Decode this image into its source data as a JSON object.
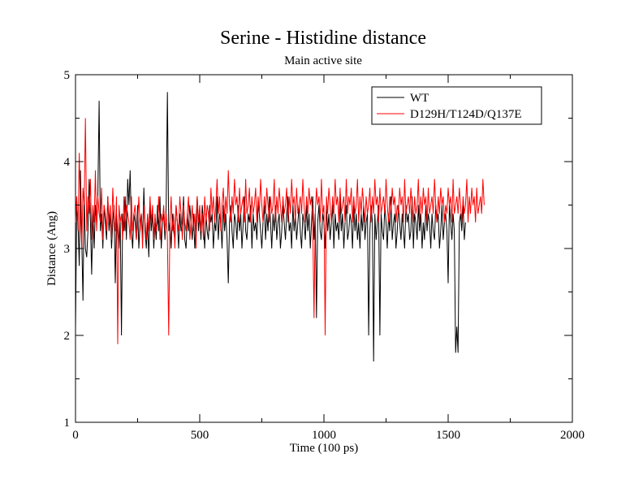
{
  "chart_data": {
    "type": "line",
    "title": "Serine - Histidine distance",
    "subtitle": "Main active site",
    "xlabel": "Time (100 ps)",
    "ylabel": "Distance (Ang)",
    "xlim": [
      0,
      2000
    ],
    "ylim": [
      1,
      5
    ],
    "x_ticks": [
      0,
      500,
      1000,
      1500,
      2000
    ],
    "y_ticks": [
      1,
      2,
      3,
      4,
      5
    ],
    "x_minor_step": 250,
    "y_minor_step": 0.5,
    "grid": false,
    "legend_position": "top-right",
    "series": [
      {
        "name": "WT",
        "color": "#000000",
        "x_step": 5,
        "values": [
          2.05,
          3.5,
          3.3,
          2.8,
          3.9,
          3.1,
          2.4,
          3.6,
          3.0,
          2.9,
          3.2,
          3.8,
          3.3,
          2.7,
          3.4,
          3.0,
          3.5,
          3.3,
          3.6,
          4.7,
          3.2,
          3.4,
          3.0,
          3.5,
          3.3,
          3.1,
          3.6,
          3.2,
          3.4,
          3.0,
          3.3,
          3.5,
          2.6,
          3.4,
          3.2,
          3.0,
          3.3,
          2.0,
          3.4,
          3.2,
          3.6,
          3.1,
          3.8,
          3.5,
          3.9,
          3.2,
          3.0,
          3.4,
          3.3,
          3.1,
          3.5,
          3.0,
          3.3,
          3.4,
          3.1,
          3.7,
          3.2,
          3.0,
          3.3,
          2.9,
          3.5,
          3.2,
          3.4,
          3.0,
          3.3,
          3.1,
          3.5,
          3.2,
          3.6,
          3.0,
          3.3,
          3.4,
          3.1,
          3.5,
          4.8,
          3.2,
          3.3,
          3.0,
          3.4,
          3.2,
          3.1,
          3.5,
          3.3,
          3.0,
          3.4,
          3.2,
          3.3,
          3.6,
          3.1,
          3.0,
          3.4,
          3.2,
          3.5,
          3.3,
          3.1,
          3.4,
          3.0,
          3.3,
          3.6,
          3.2,
          3.4,
          3.1,
          3.5,
          3.3,
          3.0,
          3.4,
          3.2,
          3.1,
          3.5,
          3.3,
          3.4,
          3.0,
          3.3,
          3.2,
          3.6,
          3.1,
          3.4,
          3.3,
          3.0,
          3.5,
          3.2,
          3.4,
          3.1,
          2.6,
          3.3,
          3.5,
          3.2,
          3.0,
          3.4,
          3.3,
          3.1,
          3.5,
          3.2,
          3.4,
          3.0,
          3.3,
          3.6,
          3.2,
          3.1,
          3.4,
          3.3,
          3.5,
          3.0,
          3.4,
          3.2,
          3.3,
          3.1,
          3.5,
          3.4,
          3.2,
          3.0,
          3.3,
          3.5,
          3.1,
          3.4,
          3.2,
          3.6,
          3.3,
          3.0,
          3.4,
          3.2,
          3.5,
          3.1,
          3.3,
          3.4,
          3.0,
          3.2,
          3.5,
          3.3,
          3.1,
          3.4,
          3.6,
          3.2,
          3.3,
          3.0,
          3.5,
          3.2,
          3.4,
          3.1,
          3.3,
          3.5,
          3.2,
          3.0,
          3.4,
          3.3,
          3.1,
          3.5,
          3.2,
          3.4,
          3.0,
          3.3,
          3.6,
          3.1,
          3.4,
          2.2,
          3.3,
          3.5,
          3.2,
          3.1,
          3.4,
          3.3,
          3.0,
          3.5,
          3.2,
          3.4,
          3.1,
          3.3,
          3.5,
          3.0,
          3.4,
          3.2,
          3.3,
          3.1,
          3.6,
          3.2,
          3.4,
          3.0,
          3.3,
          3.5,
          3.1,
          3.2,
          3.4,
          3.3,
          3.0,
          3.5,
          3.2,
          3.4,
          3.1,
          3.3,
          3.0,
          3.4,
          3.2,
          3.5,
          3.1,
          3.3,
          3.4,
          2.0,
          3.2,
          3.5,
          3.3,
          1.7,
          3.4,
          3.1,
          3.3,
          3.5,
          2.0,
          3.4,
          3.2,
          3.1,
          3.5,
          3.3,
          3.0,
          3.4,
          3.2,
          3.6,
          3.1,
          3.3,
          3.4,
          3.0,
          3.2,
          3.5,
          3.3,
          3.1,
          3.4,
          3.2,
          3.0,
          3.5,
          3.3,
          3.4,
          3.1,
          3.2,
          3.6,
          3.0,
          3.4,
          3.3,
          3.1,
          3.5,
          3.2,
          3.4,
          3.0,
          3.3,
          3.1,
          3.5,
          3.2,
          3.4,
          3.3,
          3.0,
          3.4,
          3.2,
          3.1,
          3.5,
          3.3,
          3.4,
          3.0,
          3.2,
          3.5,
          3.1,
          3.3,
          3.4,
          3.2,
          2.6,
          3.5,
          3.3,
          3.1,
          3.4,
          3.2,
          1.8,
          2.1,
          1.8,
          3.3,
          3.4,
          3.2,
          3.5,
          3.1,
          3.3
        ]
      },
      {
        "name": "D129H/T124D/Q137E",
        "color": "#ff0000",
        "x_step": 5,
        "values": [
          3.3,
          3.6,
          3.2,
          4.1,
          3.4,
          3.0,
          3.7,
          3.5,
          4.5,
          3.2,
          3.6,
          3.4,
          3.8,
          3.1,
          3.5,
          3.3,
          3.9,
          3.2,
          3.6,
          3.4,
          3.3,
          3.7,
          3.1,
          3.5,
          3.4,
          3.2,
          3.6,
          3.3,
          3.5,
          3.1,
          3.7,
          3.4,
          3.2,
          3.6,
          1.9,
          3.5,
          3.3,
          3.4,
          3.1,
          3.6,
          3.2,
          3.5,
          3.4,
          3.3,
          3.1,
          3.6,
          3.2,
          3.4,
          3.5,
          3.1,
          3.3,
          3.6,
          3.2,
          3.4,
          3.0,
          3.5,
          3.3,
          3.1,
          3.4,
          3.2,
          3.6,
          3.3,
          3.5,
          3.1,
          3.4,
          3.2,
          3.3,
          3.6,
          3.1,
          3.4,
          3.3,
          3.5,
          3.2,
          3.4,
          3.1,
          2.0,
          3.3,
          3.6,
          3.2,
          3.4,
          3.0,
          3.5,
          3.3,
          3.2,
          3.6,
          3.4,
          3.1,
          3.5,
          3.3,
          3.2,
          3.4,
          3.6,
          3.1,
          3.3,
          3.5,
          3.2,
          3.4,
          3.0,
          3.6,
          3.3,
          3.5,
          3.2,
          3.4,
          3.1,
          3.6,
          3.3,
          3.5,
          3.4,
          3.2,
          3.7,
          3.4,
          3.6,
          3.3,
          3.5,
          3.8,
          3.4,
          3.6,
          3.2,
          3.5,
          3.7,
          3.3,
          3.6,
          3.4,
          3.9,
          3.5,
          3.3,
          3.6,
          3.4,
          3.8,
          3.5,
          3.6,
          3.3,
          3.7,
          3.4,
          3.5,
          3.6,
          3.3,
          3.8,
          3.4,
          3.5,
          3.7,
          3.3,
          3.6,
          3.4,
          3.5,
          3.7,
          3.3,
          3.6,
          3.4,
          3.8,
          3.5,
          3.3,
          3.6,
          3.4,
          3.7,
          3.5,
          3.3,
          3.6,
          3.4,
          3.5,
          3.8,
          3.3,
          3.6,
          3.4,
          3.7,
          3.5,
          3.3,
          3.6,
          3.4,
          3.5,
          3.7,
          3.3,
          3.6,
          3.4,
          3.8,
          3.5,
          3.6,
          3.3,
          3.7,
          3.4,
          3.5,
          3.6,
          3.4,
          3.8,
          3.5,
          3.3,
          3.6,
          3.4,
          3.7,
          3.5,
          3.6,
          3.3,
          2.2,
          3.4,
          3.7,
          3.5,
          3.6,
          3.3,
          3.8,
          3.4,
          3.5,
          2.0,
          3.6,
          3.4,
          3.7,
          3.5,
          3.3,
          3.6,
          3.4,
          3.8,
          3.5,
          3.6,
          3.3,
          3.7,
          3.4,
          3.5,
          3.6,
          3.3,
          3.8,
          3.4,
          3.6,
          3.5,
          3.7,
          3.3,
          3.6,
          3.4,
          3.5,
          3.8,
          3.3,
          3.6,
          3.4,
          3.7,
          3.5,
          3.3,
          3.6,
          3.4,
          3.5,
          3.7,
          3.3,
          3.6,
          3.4,
          3.8,
          3.5,
          3.6,
          3.3,
          3.7,
          3.4,
          3.5,
          3.6,
          3.4,
          3.8,
          3.5,
          3.3,
          3.6,
          3.4,
          3.7,
          3.5,
          3.6,
          3.3,
          3.5,
          3.4,
          3.7,
          3.5,
          3.6,
          3.3,
          3.8,
          3.4,
          3.5,
          3.6,
          3.4,
          3.7,
          3.5,
          3.3,
          3.6,
          3.4,
          3.5,
          3.8,
          3.3,
          3.6,
          3.4,
          3.7,
          3.5,
          3.6,
          3.3,
          3.7,
          3.4,
          3.5,
          3.6,
          3.4,
          3.8,
          3.5,
          3.3,
          3.6,
          3.4,
          3.7,
          3.5,
          3.6,
          3.3,
          3.5,
          3.4,
          3.7,
          3.5,
          3.6,
          3.3,
          3.8,
          3.4,
          3.5,
          3.6,
          3.4,
          3.7,
          3.5,
          3.3,
          3.6,
          3.4,
          3.5,
          3.8,
          3.3,
          3.6,
          3.4,
          3.7,
          3.5,
          3.6,
          3.3,
          3.7,
          3.4,
          3.5,
          3.6,
          3.4,
          3.8,
          3.5
        ]
      }
    ]
  }
}
